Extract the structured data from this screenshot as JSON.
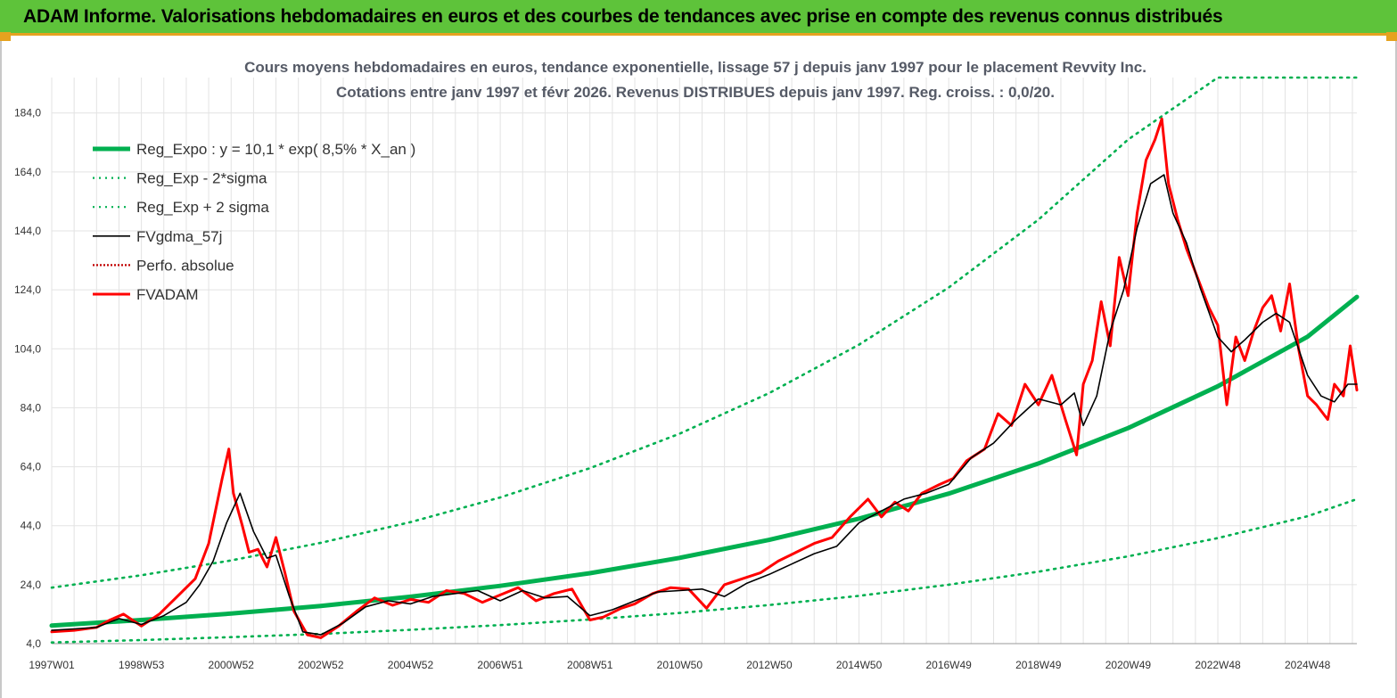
{
  "header": {
    "title": "ADAM Informe. Valorisations hebdomadaires en euros et des courbes de tendances avec prise en compte des revenus connus distribués"
  },
  "chart_data": {
    "type": "line",
    "title": "Cours moyens hebdomadaires en euros, tendance exponentielle, lissage 57 j depuis janv 1997 pour le placement Revvity Inc.",
    "subtitle": "Cotations entre janv 1997 et févr 2026. Revenus DISTRIBUES depuis janv 1997. Reg. croiss. : 0,0/20.",
    "xlabel": "",
    "ylabel": "",
    "ylim": [
      4,
      196
    ],
    "xlim": [
      1997.0,
      2026.1
    ],
    "grid": true,
    "legend_position": "top-left",
    "y_ticks": [
      "4,0",
      "24,0",
      "44,0",
      "64,0",
      "84,0",
      "104,0",
      "124,0",
      "144,0",
      "164,0",
      "184,0"
    ],
    "y_tick_values": [
      4,
      24,
      44,
      64,
      84,
      104,
      124,
      144,
      164,
      184
    ],
    "x_ticks": [
      "1997W01",
      "1998W53",
      "2000W52",
      "2002W52",
      "2004W52",
      "2006W51",
      "2008W51",
      "2010W50",
      "2012W50",
      "2014W50",
      "2016W49",
      "2018W49",
      "2020W49",
      "2022W48",
      "2024W48"
    ],
    "x_tick_values": [
      1997.0,
      1999.0,
      2001.0,
      2003.0,
      2005.0,
      2007.0,
      2009.0,
      2011.0,
      2013.0,
      2015.0,
      2017.0,
      2019.0,
      2021.0,
      2023.0,
      2025.0
    ],
    "series": [
      {
        "name": "Reg_Expo : y = 10,1 * exp( 8,5% *  X_an )",
        "color": "#00b050",
        "style": "solid-thick",
        "x": [
          1997.0,
          1999.0,
          2001.0,
          2003.0,
          2005.0,
          2007.0,
          2009.0,
          2011.0,
          2013.0,
          2015.0,
          2017.0,
          2019.0,
          2021.0,
          2023.0,
          2025.0,
          2026.1
        ],
        "y": [
          10.1,
          12.0,
          14.2,
          16.8,
          19.9,
          23.6,
          27.9,
          33.1,
          39.2,
          46.4,
          54.9,
          65.1,
          77.1,
          91.3,
          108.1,
          121.6
        ]
      },
      {
        "name": "Reg_Exp - 2*sigma",
        "color": "#00b050",
        "style": "dotted",
        "x": [
          1997.0,
          1999.0,
          2001.0,
          2003.0,
          2005.0,
          2007.0,
          2009.0,
          2011.0,
          2013.0,
          2015.0,
          2017.0,
          2019.0,
          2021.0,
          2023.0,
          2025.0,
          2026.1
        ],
        "y": [
          4.4,
          5.2,
          6.2,
          7.3,
          8.7,
          10.3,
          12.2,
          14.4,
          17.1,
          20.2,
          24.0,
          28.4,
          33.6,
          39.8,
          47.2,
          53.0
        ]
      },
      {
        "name": "Reg_Exp + 2 sigma",
        "color": "#00b050",
        "style": "dotted",
        "x": [
          1997.0,
          1999.0,
          2001.0,
          2003.0,
          2005.0,
          2007.0,
          2009.0,
          2011.0,
          2013.0,
          2015.0,
          2017.0,
          2019.0,
          2021.0,
          2023.0,
          2025.0,
          2026.1
        ],
        "y": [
          23.0,
          27.2,
          32.2,
          38.2,
          45.2,
          53.6,
          63.5,
          75.2,
          89.0,
          105.4,
          124.8,
          147.8,
          175.0,
          196.0,
          196.0,
          196.0
        ]
      },
      {
        "name": "FVgdma_57j",
        "color": "#000000",
        "style": "solid-thin",
        "x": [
          1997.0,
          1997.5,
          1998.0,
          1998.5,
          1999.0,
          1999.5,
          2000.0,
          2000.3,
          2000.6,
          2000.9,
          2001.2,
          2001.5,
          2001.8,
          2002.0,
          2002.3,
          2002.6,
          2003.0,
          2003.5,
          2004.0,
          2004.5,
          2005.0,
          2005.5,
          2006.0,
          2006.5,
          2007.0,
          2007.5,
          2008.0,
          2008.5,
          2009.0,
          2009.5,
          2010.0,
          2010.5,
          2011.0,
          2011.5,
          2012.0,
          2012.5,
          2013.0,
          2013.5,
          2014.0,
          2014.5,
          2015.0,
          2015.5,
          2016.0,
          2016.5,
          2017.0,
          2017.5,
          2018.0,
          2018.5,
          2019.0,
          2019.5,
          2019.8,
          2020.0,
          2020.3,
          2020.6,
          2020.9,
          2021.2,
          2021.5,
          2021.8,
          2022.0,
          2022.3,
          2022.6,
          2023.0,
          2023.3,
          2023.6,
          2024.0,
          2024.3,
          2024.6,
          2025.0,
          2025.3,
          2025.6,
          2025.9,
          2026.1
        ],
        "y": [
          8.5,
          9.0,
          9.5,
          12.5,
          10.5,
          13.5,
          18.0,
          24.0,
          32.0,
          45.0,
          55.0,
          42.0,
          33.0,
          34.0,
          20.0,
          8.0,
          7.0,
          11.0,
          16.5,
          18.5,
          17.5,
          20.0,
          21.0,
          22.0,
          18.5,
          22.0,
          19.5,
          20.0,
          13.5,
          15.5,
          18.5,
          21.5,
          22.0,
          22.5,
          20.0,
          24.5,
          27.5,
          31.0,
          34.5,
          37.0,
          45.0,
          49.0,
          53.0,
          55.0,
          58.0,
          67.0,
          72.0,
          80.0,
          87.0,
          85.0,
          89.0,
          78.0,
          88.0,
          110.0,
          124.0,
          145.0,
          160.0,
          163.0,
          150.0,
          140.0,
          125.0,
          108.0,
          103.0,
          107.0,
          113.0,
          116.0,
          113.0,
          95.0,
          88.0,
          86.0,
          92.0,
          92.0
        ]
      },
      {
        "name": "Perfo. absolue",
        "color": "#c00000",
        "style": "dotted",
        "x": [],
        "y": []
      },
      {
        "name": "FVADAM",
        "color": "#ff0000",
        "style": "solid-thick",
        "x": [
          1997.0,
          1997.5,
          1998.0,
          1998.3,
          1998.6,
          1999.0,
          1999.4,
          1999.8,
          2000.2,
          2000.5,
          2000.8,
          2000.95,
          2001.05,
          2001.25,
          2001.4,
          2001.6,
          2001.8,
          2002.0,
          2002.2,
          2002.4,
          2002.7,
          2003.0,
          2003.4,
          2003.8,
          2004.2,
          2004.6,
          2005.0,
          2005.4,
          2005.8,
          2006.2,
          2006.6,
          2007.0,
          2007.4,
          2007.8,
          2008.2,
          2008.6,
          2009.0,
          2009.3,
          2009.7,
          2010.0,
          2010.4,
          2010.8,
          2011.2,
          2011.6,
          2012.0,
          2012.4,
          2012.8,
          2013.2,
          2013.6,
          2014.0,
          2014.4,
          2014.8,
          2015.2,
          2015.5,
          2015.8,
          2016.1,
          2016.4,
          2016.8,
          2017.1,
          2017.4,
          2017.8,
          2018.1,
          2018.4,
          2018.7,
          2019.0,
          2019.3,
          2019.6,
          2019.85,
          2020.0,
          2020.2,
          2020.4,
          2020.6,
          2020.8,
          2021.0,
          2021.2,
          2021.4,
          2021.6,
          2021.75,
          2021.9,
          2022.1,
          2022.3,
          2022.5,
          2022.8,
          2023.0,
          2023.2,
          2023.4,
          2023.6,
          2023.8,
          2024.0,
          2024.2,
          2024.4,
          2024.6,
          2024.8,
          2025.0,
          2025.2,
          2025.45,
          2025.6,
          2025.8,
          2025.95,
          2026.1
        ],
        "y": [
          8.0,
          8.5,
          9.5,
          12.0,
          14.0,
          10.0,
          14.0,
          20.0,
          26.0,
          38.0,
          60.0,
          70.0,
          55.0,
          44.0,
          35.0,
          36.0,
          30.0,
          40.0,
          28.0,
          15.0,
          7.0,
          6.0,
          10.0,
          15.0,
          19.5,
          17.0,
          19.0,
          18.0,
          22.0,
          21.0,
          18.0,
          20.5,
          23.0,
          18.5,
          21.0,
          22.5,
          12.0,
          13.0,
          16.0,
          17.5,
          21.0,
          23.0,
          22.5,
          16.0,
          24.0,
          26.0,
          28.0,
          32.0,
          35.0,
          38.0,
          40.0,
          47.0,
          53.0,
          47.0,
          52.0,
          49.0,
          55.0,
          58.0,
          60.0,
          66.0,
          70.0,
          82.0,
          78.0,
          92.0,
          85.0,
          95.0,
          80.0,
          68.0,
          92.0,
          100.0,
          120.0,
          105.0,
          135.0,
          122.0,
          150.0,
          168.0,
          175.0,
          182.0,
          160.0,
          148.0,
          138.0,
          130.0,
          118.0,
          112.0,
          85.0,
          108.0,
          100.0,
          110.0,
          118.0,
          122.0,
          110.0,
          126.0,
          104.0,
          88.0,
          85.0,
          80.0,
          92.0,
          88.0,
          105.0,
          90.0
        ]
      }
    ]
  }
}
